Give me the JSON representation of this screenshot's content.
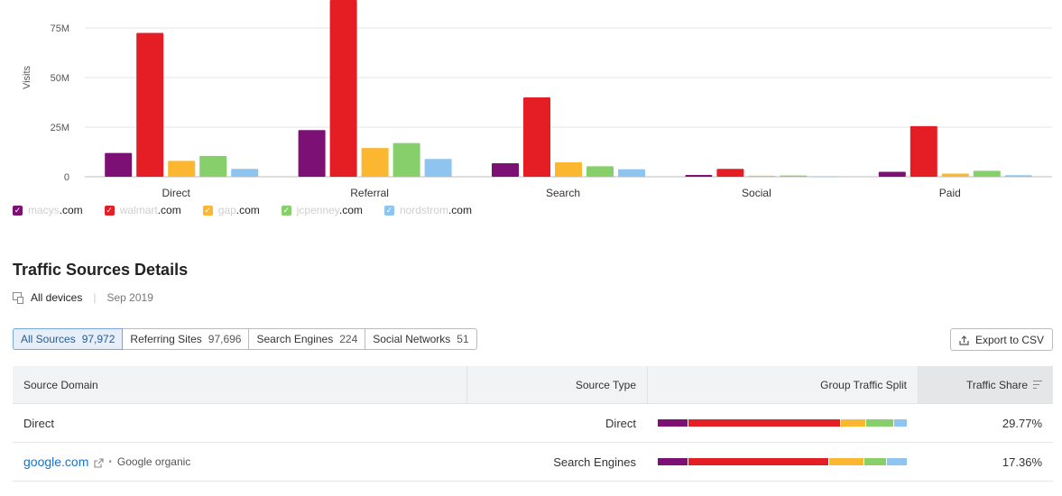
{
  "chart_data": {
    "type": "bar",
    "ylabel": "Visits",
    "yticks": [
      "0",
      "25M",
      "50M",
      "75M"
    ],
    "ylim": [
      0,
      90000000
    ],
    "categories": [
      "Direct",
      "Referral",
      "Search",
      "Social",
      "Paid"
    ],
    "legend_placement": "bottom-left",
    "grid": true,
    "series": [
      {
        "name": "macys.com",
        "color": "#7d1074",
        "values": [
          12000000,
          23500000,
          6800000,
          900000,
          2500000
        ]
      },
      {
        "name": "walmart.com",
        "color": "#e51d24",
        "values": [
          72500000,
          90000000,
          40000000,
          4000000,
          25500000
        ]
      },
      {
        "name": "gap.com",
        "color": "#fcb730",
        "values": [
          8000000,
          14500000,
          7300000,
          500000,
          1600000
        ]
      },
      {
        "name": "jcpenney.com",
        "color": "#86cf6b",
        "values": [
          10500000,
          17000000,
          5300000,
          600000,
          3000000
        ]
      },
      {
        "name": "nordstrom.com",
        "color": "#8ec5f0",
        "values": [
          4000000,
          9000000,
          3800000,
          300000,
          800000
        ]
      }
    ]
  },
  "legend": [
    {
      "faint": "macys",
      "tld": ".com",
      "color": "#7d1074"
    },
    {
      "faint": "walmart",
      "tld": ".com",
      "color": "#e51d24"
    },
    {
      "faint": "gap",
      "tld": ".com",
      "color": "#fcb730"
    },
    {
      "faint": "jcpenney",
      "tld": ".com",
      "color": "#86cf6b"
    },
    {
      "faint": "nordstrom",
      "tld": ".com",
      "color": "#8ec5f0"
    }
  ],
  "details": {
    "title": "Traffic Sources Details",
    "device": "All devices",
    "date": "Sep 2019"
  },
  "tabs": [
    {
      "label": "All Sources",
      "count": "97,972",
      "active": true
    },
    {
      "label": "Referring Sites",
      "count": "97,696",
      "active": false
    },
    {
      "label": "Search Engines",
      "count": "224",
      "active": false
    },
    {
      "label": "Social Networks",
      "count": "51",
      "active": false
    }
  ],
  "export_label": "Export to CSV",
  "table": {
    "headers": {
      "domain": "Source Domain",
      "type": "Source Type",
      "split": "Group Traffic Split",
      "share": "Traffic Share"
    },
    "rows": [
      {
        "domain": "Direct",
        "is_link": false,
        "sub": "",
        "type": "Direct",
        "share": "29.77%",
        "split": [
          12,
          62,
          10,
          11,
          5
        ]
      },
      {
        "domain": "google.com",
        "is_link": true,
        "sub": "Google organic",
        "type": "Search Engines",
        "share": "17.36%",
        "split": [
          12,
          57,
          14,
          9,
          8
        ]
      }
    ]
  }
}
